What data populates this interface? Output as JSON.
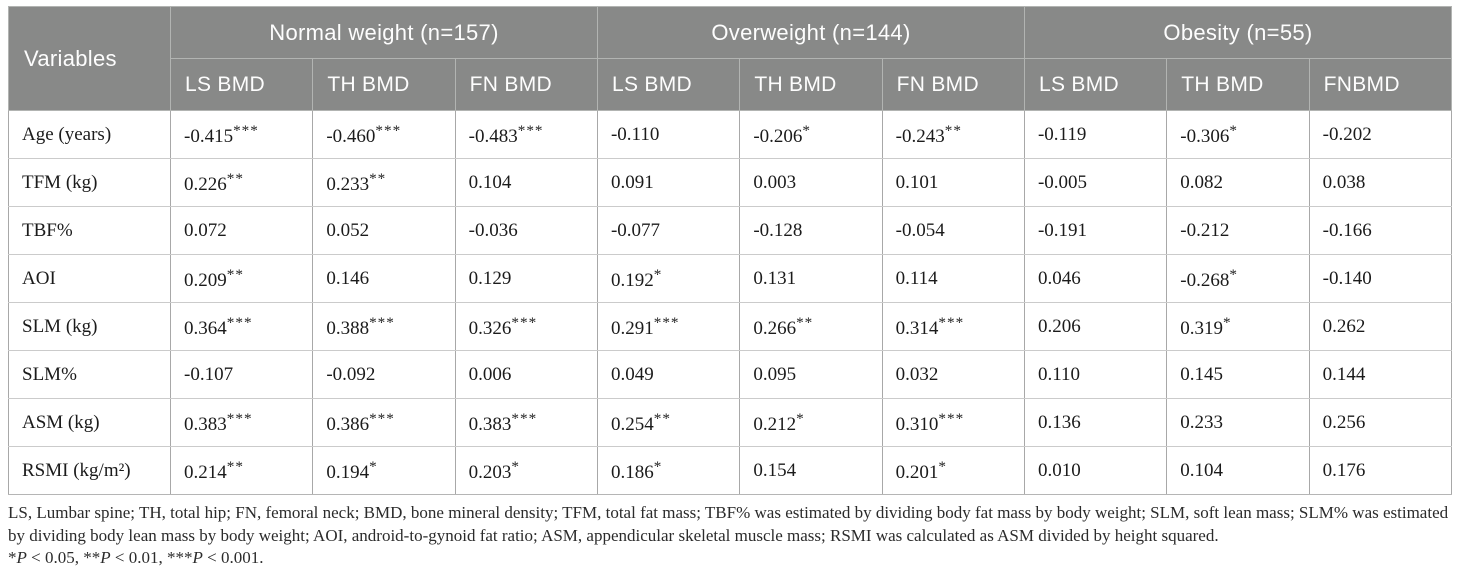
{
  "table": {
    "corner_label": "Variables",
    "groups": [
      {
        "label": "Normal weight (n=157)",
        "columns": [
          "LS BMD",
          "TH BMD",
          "FN BMD"
        ]
      },
      {
        "label": "Overweight (n=144)",
        "columns": [
          "LS BMD",
          "TH BMD",
          "FN BMD"
        ]
      },
      {
        "label": "Obesity (n=55)",
        "columns": [
          "LS BMD",
          "TH BMD",
          "FNBMD"
        ]
      }
    ],
    "rows": [
      {
        "variable": "Age (years)",
        "values": [
          "-0.415***",
          "-0.460***",
          "-0.483***",
          "-0.110",
          "-0.206*",
          "-0.243**",
          "-0.119",
          "-0.306*",
          "-0.202"
        ]
      },
      {
        "variable": "TFM (kg)",
        "values": [
          "0.226**",
          "0.233**",
          "0.104",
          "0.091",
          "0.003",
          "0.101",
          "-0.005",
          "0.082",
          "0.038"
        ]
      },
      {
        "variable": "TBF%",
        "values": [
          "0.072",
          "0.052",
          "-0.036",
          "-0.077",
          "-0.128",
          "-0.054",
          "-0.191",
          "-0.212",
          "-0.166"
        ]
      },
      {
        "variable": "AOI",
        "values": [
          "0.209**",
          "0.146",
          "0.129",
          "0.192*",
          "0.131",
          "0.114",
          "0.046",
          "-0.268*",
          "-0.140"
        ]
      },
      {
        "variable": "SLM (kg)",
        "values": [
          "0.364***",
          "0.388***",
          "0.326***",
          "0.291***",
          "0.266**",
          "0.314***",
          "0.206",
          "0.319*",
          "0.262"
        ]
      },
      {
        "variable": "SLM%",
        "values": [
          "-0.107",
          "-0.092",
          "0.006",
          "0.049",
          "0.095",
          "0.032",
          "0.110",
          "0.145",
          "0.144"
        ]
      },
      {
        "variable": "ASM (kg)",
        "values": [
          "0.383***",
          "0.386***",
          "0.383***",
          "0.254**",
          "0.212*",
          "0.310***",
          "0.136",
          "0.233",
          "0.256"
        ]
      },
      {
        "variable": "RSMI (kg/m²)",
        "values": [
          "0.214**",
          "0.194*",
          "0.203*",
          "0.186*",
          "0.154",
          "0.201*",
          "0.010",
          "0.104",
          "0.176"
        ]
      }
    ]
  },
  "footnote": {
    "abbreviations": "LS, Lumbar spine; TH, total hip; FN, femoral neck; BMD, bone mineral density; TFM, total fat mass; TBF% was estimated by dividing body fat mass by body weight; SLM, soft lean mass; SLM% was estimated by dividing body lean mass by body weight; AOI, android-to-gynoid fat ratio; ASM, appendicular skeletal muscle mass; RSMI was calculated as ASM divided by height squared.",
    "significance": [
      {
        "stars": "*",
        "p": "P",
        "rest": " < 0.05, "
      },
      {
        "stars": "**",
        "p": "P",
        "rest": " < 0.01, "
      },
      {
        "stars": "***",
        "p": "P",
        "rest": " < 0.001."
      }
    ]
  },
  "colors": {
    "header_bg": "#888988",
    "header_text": "#fdfdfd",
    "body_text": "#1b1b1b",
    "row_border": "#cbcbcb",
    "col_border": "#a8a8a8"
  }
}
